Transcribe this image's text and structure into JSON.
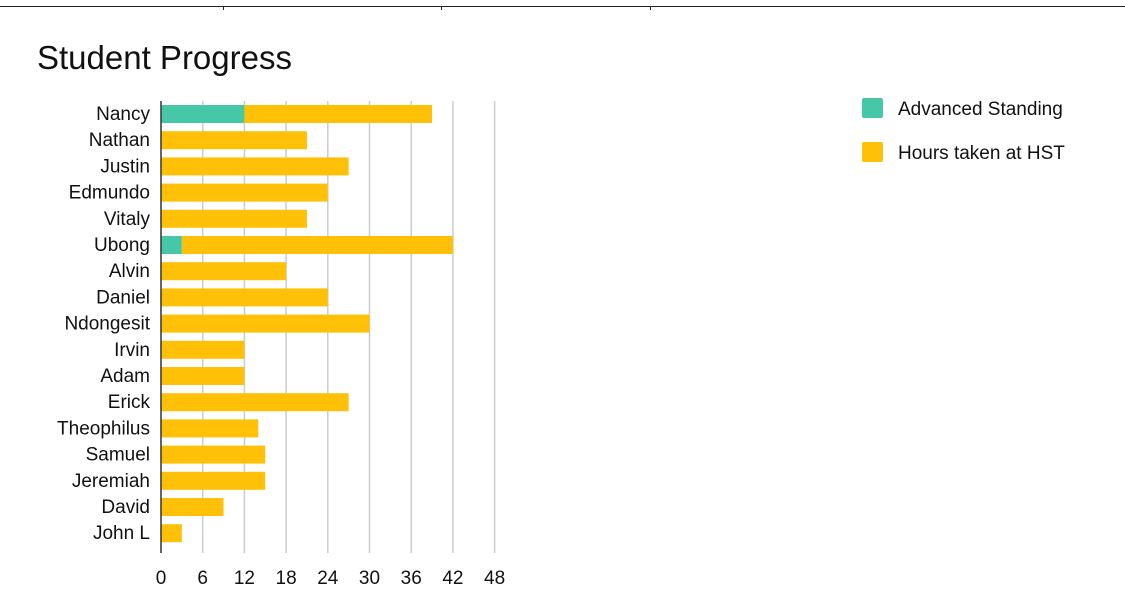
{
  "chart_data": {
    "type": "bar",
    "orientation": "horizontal",
    "stacked": true,
    "title": "Student Progress",
    "categories": [
      "Nancy",
      "Nathan",
      "Justin",
      "Edmundo",
      "Vitaly",
      "Ubong",
      "Alvin",
      "Daniel",
      "Ndongesit",
      "Irvin",
      "Adam",
      "Erick",
      "Theophilus",
      "Samuel",
      "Jeremiah",
      "David",
      "John L"
    ],
    "series": [
      {
        "name": "Advanced Standing",
        "color": "#46c7a8",
        "values": [
          12,
          0,
          0,
          0,
          0,
          3,
          0,
          0,
          0,
          0,
          0,
          0,
          0,
          0,
          0,
          0,
          0
        ]
      },
      {
        "name": "Hours taken at HST",
        "color": "#ffc107",
        "values": [
          27,
          21,
          27,
          24,
          21,
          39,
          18,
          24,
          30,
          12,
          12,
          27,
          14,
          15,
          15,
          9,
          3
        ]
      }
    ],
    "xlim": [
      0,
      48
    ],
    "xticks": [
      0,
      6,
      12,
      18,
      24,
      30,
      36,
      42,
      48
    ],
    "grid": true,
    "legend": "right"
  }
}
